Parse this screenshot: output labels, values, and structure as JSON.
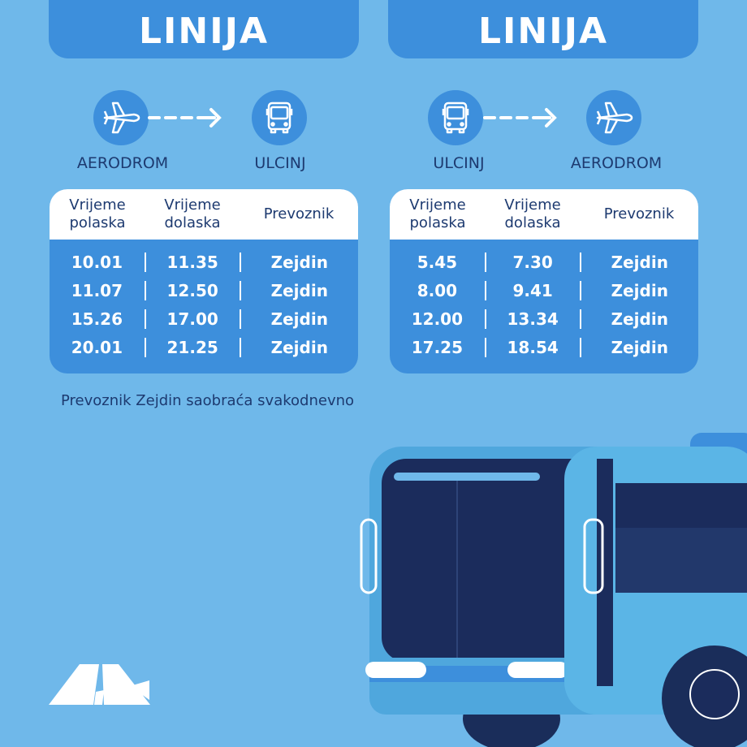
{
  "colors": {
    "background": "#6fb8ea",
    "panel": "#3d8fdc",
    "text": "#1d3a70"
  },
  "left": {
    "title": "LINIJA",
    "from": "AERODROM",
    "to": "ULCINJ",
    "from_icon": "airplane-icon",
    "to_icon": "bus-icon",
    "headers": [
      "Vrijeme polaska",
      "Vrijeme dolaska",
      "Prevoznik"
    ],
    "rows": [
      [
        "10.01",
        "11.35",
        "Zejdin"
      ],
      [
        "11.07",
        "12.50",
        "Zejdin"
      ],
      [
        "15.26",
        "17.00",
        "Zejdin"
      ],
      [
        "20.01",
        "21.25",
        "Zejdin"
      ]
    ]
  },
  "right": {
    "title": "LINIJA",
    "from": "ULCINJ",
    "to": "AERODROM",
    "from_icon": "bus-icon",
    "to_icon": "airplane-icon",
    "headers": [
      "Vrijeme polaska",
      "Vrijeme dolaska",
      "Prevoznik"
    ],
    "rows": [
      [
        "5.45",
        "7.30",
        "Zejdin"
      ],
      [
        "8.00",
        "9.41",
        "Zejdin"
      ],
      [
        "12.00",
        "13.34",
        "Zejdin"
      ],
      [
        "17.25",
        "18.54",
        "Zejdin"
      ]
    ]
  },
  "note": "Prevoznik Zejdin saobraća svakodnevno"
}
